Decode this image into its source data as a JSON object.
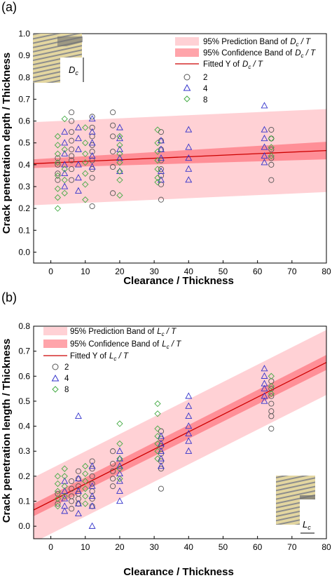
{
  "chart_data": [
    {
      "panel": "(a)",
      "type": "scatter",
      "xlabel": "Clearance / Thickness",
      "ylabel": "Crack penetration depth / Thickness",
      "xlim": [
        -5,
        80
      ],
      "ylim": [
        -0.05,
        1.0
      ],
      "xticks": [
        0,
        10,
        20,
        30,
        40,
        50,
        60,
        70,
        80
      ],
      "yticks": [
        0.0,
        0.1,
        0.2,
        0.3,
        0.4,
        0.5,
        0.6,
        0.7,
        0.8,
        0.9,
        1.0
      ],
      "legend_position": "top-right",
      "legend": {
        "prediction": "95% Prediction Band of",
        "confidence": "95% Confidence Band of",
        "fitted": "Fitted Y of",
        "ratio_main": "D",
        "ratio_sub": "c",
        "ratio_tail": " / T"
      },
      "inset_label_main": "D",
      "inset_label_sub": "c",
      "fit": {
        "x": [
          -5,
          80
        ],
        "y": [
          0.405,
          0.465
        ]
      },
      "confidence_band": {
        "x": [
          -5,
          80
        ],
        "lower": [
          0.385,
          0.425
        ],
        "upper": [
          0.425,
          0.505
        ]
      },
      "prediction_band": {
        "x": [
          -5,
          80
        ],
        "lower": [
          0.215,
          0.275
        ],
        "upper": [
          0.595,
          0.655
        ]
      },
      "series": [
        {
          "name": "2",
          "marker": "circle",
          "color": "#555555",
          "points": [
            [
              2,
              0.36
            ],
            [
              2,
              0.4
            ],
            [
              2,
              0.43
            ],
            [
              2,
              0.33
            ],
            [
              6,
              0.64
            ],
            [
              6,
              0.6
            ],
            [
              6,
              0.55
            ],
            [
              6,
              0.51
            ],
            [
              6,
              0.47
            ],
            [
              6,
              0.44
            ],
            [
              6,
              0.42
            ],
            [
              6,
              0.38
            ],
            [
              6,
              0.33
            ],
            [
              12,
              0.62
            ],
            [
              12,
              0.57
            ],
            [
              12,
              0.53
            ],
            [
              12,
              0.49
            ],
            [
              12,
              0.46
            ],
            [
              12,
              0.42
            ],
            [
              12,
              0.38
            ],
            [
              12,
              0.34
            ],
            [
              12,
              0.21
            ],
            [
              18,
              0.64
            ],
            [
              18,
              0.58
            ],
            [
              18,
              0.53
            ],
            [
              18,
              0.46
            ],
            [
              18,
              0.39
            ],
            [
              18,
              0.27
            ],
            [
              32,
              0.55
            ],
            [
              32,
              0.51
            ],
            [
              32,
              0.47
            ],
            [
              32,
              0.42
            ],
            [
              32,
              0.38
            ],
            [
              32,
              0.35
            ],
            [
              32,
              0.31
            ],
            [
              32,
              0.24
            ],
            [
              64,
              0.56
            ],
            [
              64,
              0.52
            ],
            [
              64,
              0.47
            ],
            [
              64,
              0.43
            ],
            [
              64,
              0.4
            ],
            [
              64,
              0.33
            ]
          ]
        },
        {
          "name": "4",
          "marker": "triangle",
          "color": "#3333cc",
          "points": [
            [
              4,
              0.55
            ],
            [
              4,
              0.5
            ],
            [
              4,
              0.45
            ],
            [
              4,
              0.4
            ],
            [
              4,
              0.36
            ],
            [
              4,
              0.3
            ],
            [
              8,
              0.57
            ],
            [
              8,
              0.52
            ],
            [
              8,
              0.47
            ],
            [
              8,
              0.4
            ],
            [
              8,
              0.34
            ],
            [
              8,
              0.28
            ],
            [
              12,
              0.61
            ],
            [
              12,
              0.55
            ],
            [
              12,
              0.5
            ],
            [
              12,
              0.44
            ],
            [
              12,
              0.39
            ],
            [
              20,
              0.57
            ],
            [
              20,
              0.52
            ],
            [
              20,
              0.47
            ],
            [
              20,
              0.43
            ],
            [
              20,
              0.37
            ],
            [
              32,
              0.51
            ],
            [
              32,
              0.47
            ],
            [
              32,
              0.43
            ],
            [
              32,
              0.37
            ],
            [
              32,
              0.33
            ],
            [
              40,
              0.56
            ],
            [
              40,
              0.48
            ],
            [
              40,
              0.43
            ],
            [
              40,
              0.38
            ],
            [
              40,
              0.33
            ],
            [
              62,
              0.67
            ],
            [
              62,
              0.56
            ],
            [
              62,
              0.52
            ],
            [
              62,
              0.48
            ],
            [
              62,
              0.44
            ],
            [
              62,
              0.41
            ]
          ]
        },
        {
          "name": "8",
          "marker": "diamond",
          "color": "#44aa44",
          "points": [
            [
              2,
              0.53
            ],
            [
              2,
              0.49
            ],
            [
              2,
              0.45
            ],
            [
              2,
              0.41
            ],
            [
              2,
              0.35
            ],
            [
              2,
              0.29
            ],
            [
              2,
              0.25
            ],
            [
              2,
              0.2
            ],
            [
              4,
              0.61
            ],
            [
              4,
              0.47
            ],
            [
              4,
              0.38
            ],
            [
              4,
              0.33
            ],
            [
              4,
              0.27
            ],
            [
              10,
              0.57
            ],
            [
              10,
              0.5
            ],
            [
              10,
              0.45
            ],
            [
              10,
              0.41
            ],
            [
              10,
              0.36
            ],
            [
              10,
              0.31
            ],
            [
              10,
              0.24
            ],
            [
              20,
              0.53
            ],
            [
              20,
              0.49
            ],
            [
              20,
              0.45
            ],
            [
              20,
              0.41
            ],
            [
              20,
              0.37
            ],
            [
              20,
              0.33
            ],
            [
              20,
              0.26
            ],
            [
              31,
              0.56
            ],
            [
              31,
              0.5
            ],
            [
              31,
              0.46
            ],
            [
              31,
              0.42
            ],
            [
              31,
              0.38
            ],
            [
              31,
              0.34
            ],
            [
              31,
              0.32
            ],
            [
              64,
              0.52
            ],
            [
              64,
              0.48
            ],
            [
              64,
              0.44
            ]
          ]
        }
      ]
    },
    {
      "panel": "(b)",
      "type": "scatter",
      "xlabel": "Clearance / Thickness",
      "ylabel": "Crack penetration length / Thickness",
      "xlim": [
        -5,
        80
      ],
      "ylim": [
        -0.05,
        0.8
      ],
      "xticks": [
        0,
        10,
        20,
        30,
        40,
        50,
        60,
        70,
        80
      ],
      "yticks": [
        0.0,
        0.1,
        0.2,
        0.3,
        0.4,
        0.5,
        0.6,
        0.7,
        0.8
      ],
      "legend_position": "top-left",
      "legend": {
        "prediction": "95% Prediction Band of",
        "confidence": "95% Confidence Band of",
        "fitted": "Fitted Y of",
        "ratio_main": "L",
        "ratio_sub": "c",
        "ratio_tail": " / T"
      },
      "inset_label_main": "L",
      "inset_label_sub": "c",
      "fit": {
        "x": [
          -5,
          80
        ],
        "y": [
          0.065,
          0.655
        ]
      },
      "confidence_band": {
        "x": [
          -5,
          80
        ],
        "lower": [
          0.04,
          0.625
        ],
        "upper": [
          0.09,
          0.685
        ]
      },
      "prediction_band": {
        "x": [
          -5,
          80
        ],
        "lower": [
          -0.065,
          0.525
        ],
        "upper": [
          0.195,
          0.785
        ]
      },
      "series": [
        {
          "name": "2",
          "marker": "circle",
          "color": "#555555",
          "points": [
            [
              2,
              0.13
            ],
            [
              2,
              0.09
            ],
            [
              6,
              0.18
            ],
            [
              6,
              0.15
            ],
            [
              6,
              0.12
            ],
            [
              6,
              0.1
            ],
            [
              6,
              0.07
            ],
            [
              8,
              0.22
            ],
            [
              8,
              0.19
            ],
            [
              8,
              0.16
            ],
            [
              8,
              0.13
            ],
            [
              8,
              0.11
            ],
            [
              8,
              0.09
            ],
            [
              12,
              0.26
            ],
            [
              12,
              0.23
            ],
            [
              12,
              0.2
            ],
            [
              12,
              0.17
            ],
            [
              12,
              0.14
            ],
            [
              12,
              0.11
            ],
            [
              12,
              0.08
            ],
            [
              18,
              0.3
            ],
            [
              18,
              0.25
            ],
            [
              18,
              0.22
            ],
            [
              18,
              0.19
            ],
            [
              18,
              0.16
            ],
            [
              32,
              0.38
            ],
            [
              32,
              0.35
            ],
            [
              32,
              0.32
            ],
            [
              32,
              0.29
            ],
            [
              32,
              0.26
            ],
            [
              32,
              0.23
            ],
            [
              32,
              0.15
            ],
            [
              64,
              0.58
            ],
            [
              64,
              0.55
            ],
            [
              64,
              0.52
            ],
            [
              64,
              0.49
            ],
            [
              64,
              0.46
            ],
            [
              64,
              0.44
            ],
            [
              64,
              0.39
            ]
          ]
        },
        {
          "name": "4",
          "marker": "triangle",
          "color": "#3333cc",
          "points": [
            [
              4,
              0.18
            ],
            [
              4,
              0.14
            ],
            [
              4,
              0.11
            ],
            [
              4,
              0.08
            ],
            [
              4,
              0.06
            ],
            [
              8,
              0.44
            ],
            [
              8,
              0.19
            ],
            [
              8,
              0.14
            ],
            [
              8,
              0.09
            ],
            [
              8,
              0.05
            ],
            [
              12,
              0.24
            ],
            [
              12,
              0.16
            ],
            [
              12,
              0.12
            ],
            [
              12,
              0.08
            ],
            [
              12,
              0.0
            ],
            [
              20,
              0.3
            ],
            [
              20,
              0.27
            ],
            [
              20,
              0.24
            ],
            [
              20,
              0.21
            ],
            [
              20,
              0.18
            ],
            [
              20,
              0.14
            ],
            [
              20,
              0.1
            ],
            [
              32,
              0.36
            ],
            [
              32,
              0.33
            ],
            [
              32,
              0.3
            ],
            [
              32,
              0.27
            ],
            [
              32,
              0.24
            ],
            [
              40,
              0.52
            ],
            [
              40,
              0.48
            ],
            [
              40,
              0.44
            ],
            [
              40,
              0.4
            ],
            [
              40,
              0.37
            ],
            [
              40,
              0.34
            ],
            [
              40,
              0.3
            ],
            [
              62,
              0.63
            ],
            [
              62,
              0.6
            ],
            [
              62,
              0.57
            ],
            [
              62,
              0.55
            ],
            [
              62,
              0.52
            ],
            [
              62,
              0.5
            ]
          ]
        },
        {
          "name": "8",
          "marker": "diamond",
          "color": "#44aa44",
          "points": [
            [
              2,
              0.2
            ],
            [
              2,
              0.17
            ],
            [
              2,
              0.14
            ],
            [
              2,
              0.11
            ],
            [
              2,
              0.08
            ],
            [
              4,
              0.23
            ],
            [
              4,
              0.2
            ],
            [
              4,
              0.16
            ],
            [
              4,
              0.12
            ],
            [
              10,
              0.24
            ],
            [
              10,
              0.21
            ],
            [
              10,
              0.18
            ],
            [
              10,
              0.15
            ],
            [
              10,
              0.12
            ],
            [
              10,
              0.09
            ],
            [
              20,
              0.41
            ],
            [
              20,
              0.33
            ],
            [
              20,
              0.27
            ],
            [
              20,
              0.23
            ],
            [
              20,
              0.19
            ],
            [
              31,
              0.49
            ],
            [
              31,
              0.45
            ],
            [
              31,
              0.39
            ],
            [
              31,
              0.36
            ],
            [
              31,
              0.33
            ],
            [
              31,
              0.3
            ],
            [
              31,
              0.27
            ],
            [
              64,
              0.6
            ],
            [
              64,
              0.56
            ],
            [
              64,
              0.53
            ]
          ]
        }
      ]
    }
  ]
}
